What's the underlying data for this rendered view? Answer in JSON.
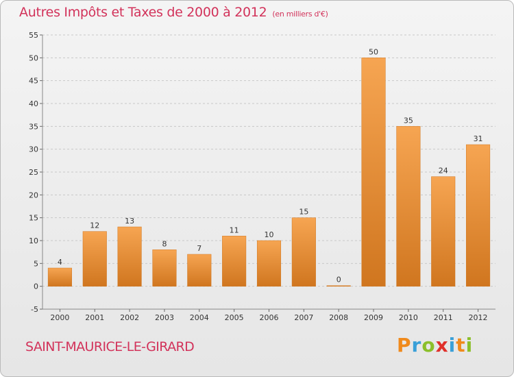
{
  "header": {
    "title": "Autres Impôts et Taxes de 2000 à 2012",
    "unit": "(en milliers d'€)"
  },
  "footer": {
    "town": "SAINT-MAURICE-LE-GIRARD",
    "brand": "Proxiti"
  },
  "colors": {
    "title": "#d2325a",
    "bar_light": "#f6a552",
    "bar_dark": "#d0761f",
    "grid": "#c8c8c8"
  },
  "chart_data": {
    "type": "bar",
    "title": "Autres Impôts et Taxes de 2000 à 2012",
    "xlabel": "",
    "ylabel": "",
    "categories": [
      "2000",
      "2001",
      "2002",
      "2003",
      "2004",
      "2005",
      "2006",
      "2007",
      "2008",
      "2009",
      "2010",
      "2011",
      "2012"
    ],
    "values": [
      4,
      12,
      13,
      8,
      7,
      11,
      10,
      15,
      0,
      50,
      35,
      24,
      31
    ],
    "ylim": [
      -5,
      55
    ],
    "yticks": [
      -5,
      0,
      5,
      10,
      15,
      20,
      25,
      30,
      35,
      40,
      45,
      50,
      55
    ],
    "grid": true,
    "legend": "none"
  }
}
